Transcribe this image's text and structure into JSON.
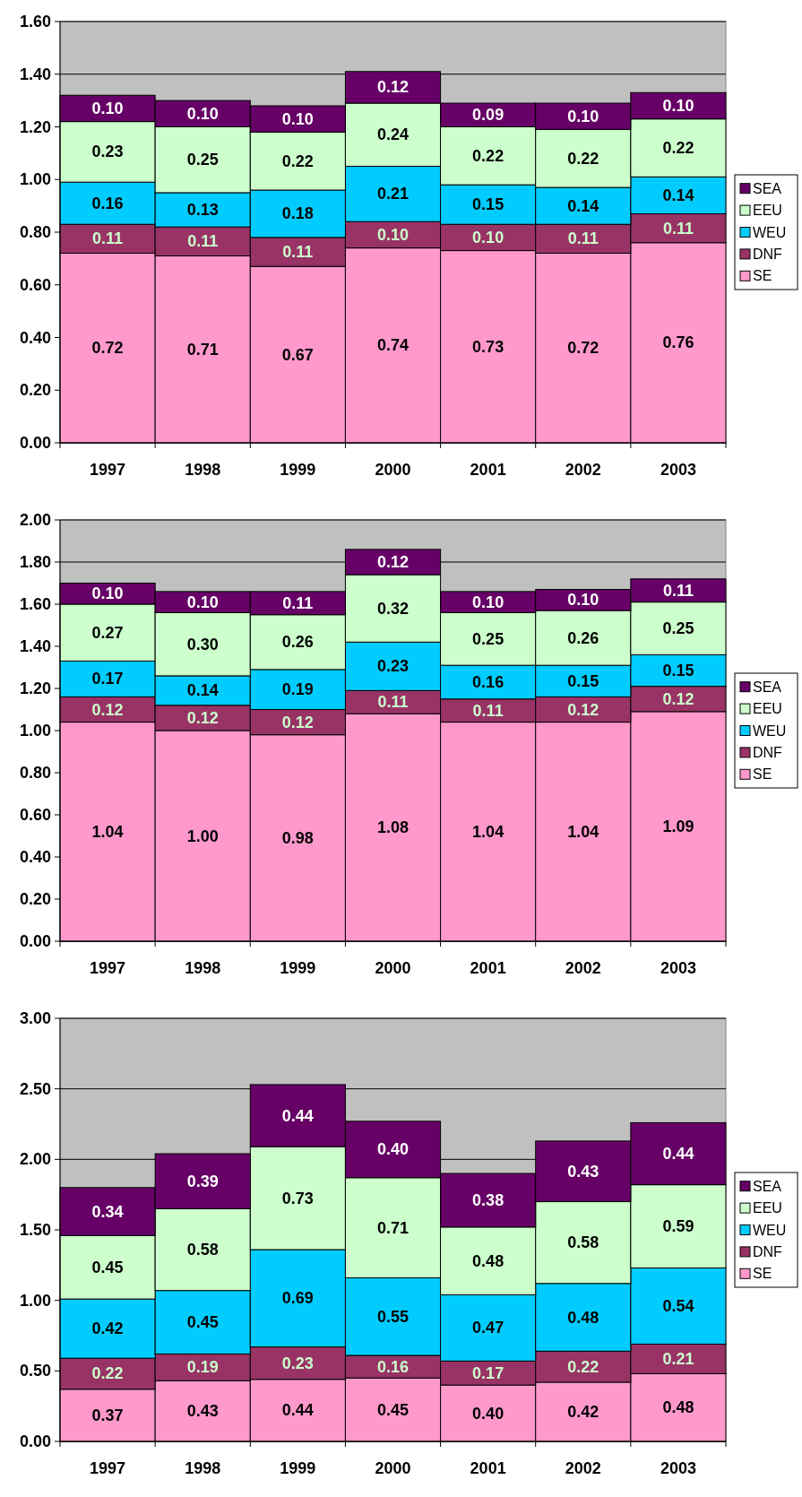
{
  "chart_data": [
    {
      "type": "bar",
      "stacked": true,
      "categories": [
        "1997",
        "1998",
        "1999",
        "2000",
        "2001",
        "2002",
        "2003"
      ],
      "series": [
        {
          "name": "SE",
          "color": "#ff99cc",
          "values": [
            0.72,
            0.71,
            0.67,
            0.74,
            0.73,
            0.72,
            0.76
          ],
          "value_labels": [
            "0.72",
            "0.71",
            "0.67",
            "0.74",
            "0.73",
            "0.72",
            "0.76"
          ]
        },
        {
          "name": "DNF",
          "color": "#993366",
          "values": [
            0.11,
            0.11,
            0.11,
            0.1,
            0.1,
            0.11,
            0.11
          ],
          "value_labels": [
            "0.11",
            "0.11",
            "0.11",
            "0.10",
            "0.10",
            "0.11",
            "0.11"
          ]
        },
        {
          "name": "WEU",
          "color": "#00ccff",
          "values": [
            0.16,
            0.13,
            0.18,
            0.21,
            0.15,
            0.14,
            0.14
          ],
          "value_labels": [
            "0.16",
            "0.13",
            "0.18",
            "0.21",
            "0.15",
            "0.14",
            "0.14"
          ]
        },
        {
          "name": "EEU",
          "color": "#ccffcc",
          "values": [
            0.23,
            0.25,
            0.22,
            0.24,
            0.22,
            0.22,
            0.22
          ],
          "value_labels": [
            "0.23",
            "0.25",
            "0.22",
            "0.24",
            "0.22",
            "0.22",
            "0.22"
          ]
        },
        {
          "name": "SEA",
          "color": "#660066",
          "values": [
            0.1,
            0.1,
            0.1,
            0.12,
            0.09,
            0.1,
            0.1
          ],
          "value_labels": [
            "0.10",
            "0.10",
            "0.10",
            "0.12",
            "0.09",
            "0.10",
            "0.10"
          ]
        }
      ],
      "ylim": [
        0,
        1.6
      ],
      "yticks": [
        {
          "value": 0,
          "label": "0.00"
        },
        {
          "value": 0.2,
          "label": "0.20"
        },
        {
          "value": 0.4,
          "label": "0.40"
        },
        {
          "value": 0.6,
          "label": "0.60"
        },
        {
          "value": 0.8,
          "label": "0.80"
        },
        {
          "value": 1,
          "label": "1.00"
        },
        {
          "value": 1.2,
          "label": "1.20"
        },
        {
          "value": 1.4,
          "label": "1.40"
        },
        {
          "value": 1.6,
          "label": "1.60"
        }
      ],
      "grid": "y",
      "legend": "right"
    },
    {
      "type": "bar",
      "stacked": true,
      "categories": [
        "1997",
        "1998",
        "1999",
        "2000",
        "2001",
        "2002",
        "2003"
      ],
      "series": [
        {
          "name": "SE",
          "color": "#ff99cc",
          "values": [
            1.04,
            1.0,
            0.98,
            1.08,
            1.04,
            1.04,
            1.09
          ],
          "value_labels": [
            "1.04",
            "1.00",
            "0.98",
            "1.08",
            "1.04",
            "1.04",
            "1.09"
          ]
        },
        {
          "name": "DNF",
          "color": "#993366",
          "values": [
            0.12,
            0.12,
            0.12,
            0.11,
            0.11,
            0.12,
            0.12
          ],
          "value_labels": [
            "0.12",
            "0.12",
            "0.12",
            "0.11",
            "0.11",
            "0.12",
            "0.12"
          ]
        },
        {
          "name": "WEU",
          "color": "#00ccff",
          "values": [
            0.17,
            0.14,
            0.19,
            0.23,
            0.16,
            0.15,
            0.15
          ],
          "value_labels": [
            "0.17",
            "0.14",
            "0.19",
            "0.23",
            "0.16",
            "0.15",
            "0.15"
          ]
        },
        {
          "name": "EEU",
          "color": "#ccffcc",
          "values": [
            0.27,
            0.3,
            0.26,
            0.32,
            0.25,
            0.26,
            0.25
          ],
          "value_labels": [
            "0.27",
            "0.30",
            "0.26",
            "0.32",
            "0.25",
            "0.26",
            "0.25"
          ]
        },
        {
          "name": "SEA",
          "color": "#660066",
          "values": [
            0.1,
            0.1,
            0.11,
            0.12,
            0.1,
            0.1,
            0.11
          ],
          "value_labels": [
            "0.10",
            "0.10",
            "0.11",
            "0.12",
            "0.10",
            "0.10",
            "0.11"
          ]
        }
      ],
      "ylim": [
        0,
        2
      ],
      "yticks": [
        {
          "value": 0,
          "label": "0.00"
        },
        {
          "value": 0.2,
          "label": "0.20"
        },
        {
          "value": 0.4,
          "label": "0.40"
        },
        {
          "value": 0.6,
          "label": "0.60"
        },
        {
          "value": 0.8,
          "label": "0.80"
        },
        {
          "value": 1,
          "label": "1.00"
        },
        {
          "value": 1.2,
          "label": "1.20"
        },
        {
          "value": 1.4,
          "label": "1.40"
        },
        {
          "value": 1.6,
          "label": "1.60"
        },
        {
          "value": 1.8,
          "label": "1.80"
        },
        {
          "value": 2,
          "label": "2.00"
        }
      ],
      "grid": "y",
      "legend": "right"
    },
    {
      "type": "bar",
      "stacked": true,
      "categories": [
        "1997",
        "1998",
        "1999",
        "2000",
        "2001",
        "2002",
        "2003"
      ],
      "series": [
        {
          "name": "SE",
          "color": "#ff99cc",
          "values": [
            0.37,
            0.43,
            0.44,
            0.45,
            0.4,
            0.42,
            0.48
          ],
          "value_labels": [
            "0.37",
            "0.43",
            "0.44",
            "0.45",
            "0.40",
            "0.42",
            "0.48"
          ]
        },
        {
          "name": "DNF",
          "color": "#993366",
          "values": [
            0.22,
            0.19,
            0.23,
            0.16,
            0.17,
            0.22,
            0.21
          ],
          "value_labels": [
            "0.22",
            "0.19",
            "0.23",
            "0.16",
            "0.17",
            "0.22",
            "0.21"
          ]
        },
        {
          "name": "WEU",
          "color": "#00ccff",
          "values": [
            0.42,
            0.45,
            0.69,
            0.55,
            0.47,
            0.48,
            0.54
          ],
          "value_labels": [
            "0.42",
            "0.45",
            "0.69",
            "0.55",
            "0.47",
            "0.48",
            "0.54"
          ]
        },
        {
          "name": "EEU",
          "color": "#ccffcc",
          "values": [
            0.45,
            0.58,
            0.73,
            0.71,
            0.48,
            0.58,
            0.59
          ],
          "value_labels": [
            "0.45",
            "0.58",
            "0.73",
            "0.71",
            "0.48",
            "0.58",
            "0.59"
          ]
        },
        {
          "name": "SEA",
          "color": "#660066",
          "values": [
            0.34,
            0.39,
            0.44,
            0.4,
            0.38,
            0.43,
            0.44
          ],
          "value_labels": [
            "0.34",
            "0.39",
            "0.44",
            "0.40",
            "0.38",
            "0.43",
            "0.44"
          ]
        }
      ],
      "ylim": [
        0,
        3
      ],
      "yticks": [
        {
          "value": 0,
          "label": "0.00"
        },
        {
          "value": 0.5,
          "label": "0.50"
        },
        {
          "value": 1,
          "label": "1.00"
        },
        {
          "value": 1.5,
          "label": "1.50"
        },
        {
          "value": 2,
          "label": "2.00"
        },
        {
          "value": 2.5,
          "label": "2.50"
        },
        {
          "value": 3,
          "label": "3.00"
        }
      ],
      "grid": "y",
      "legend": "right"
    }
  ]
}
